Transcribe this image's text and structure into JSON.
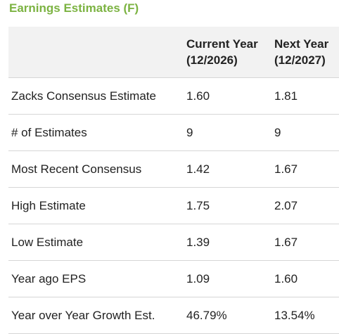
{
  "header": {
    "title": "Earnings Estimates (F)"
  },
  "table": {
    "columns": [
      {
        "name": "Current Year",
        "period": "(12/2026)"
      },
      {
        "name": "Next Year",
        "period": "(12/2027)"
      }
    ],
    "rows": [
      [
        "Zacks Consensus Estimate",
        "1.60",
        "1.81"
      ],
      [
        "# of Estimates",
        "9",
        "9"
      ],
      [
        "Most Recent Consensus",
        "1.42",
        "1.67"
      ],
      [
        "High Estimate",
        "1.75",
        "2.07"
      ],
      [
        "Low Estimate",
        "1.39",
        "1.67"
      ],
      [
        "Year ago EPS",
        "1.09",
        "1.60"
      ],
      [
        "Year over Year Growth Est.",
        "46.79%",
        "13.54%"
      ]
    ]
  }
}
